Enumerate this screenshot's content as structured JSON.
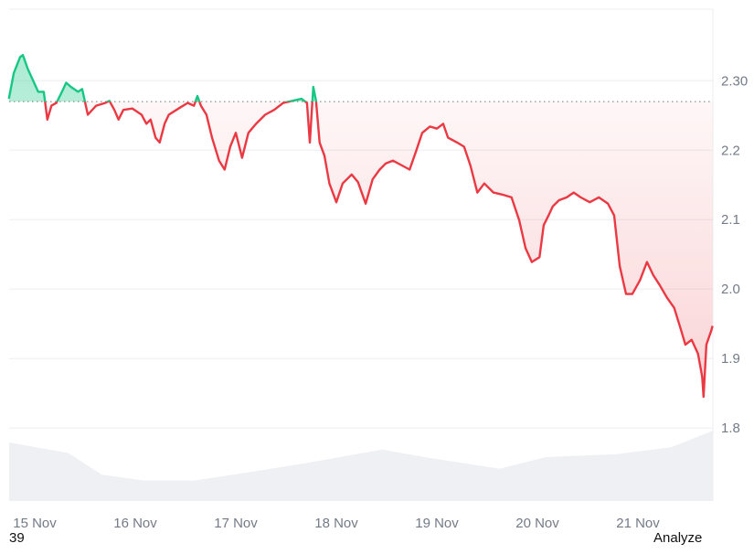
{
  "chart_data": {
    "type": "area",
    "title": "",
    "xlabel": "",
    "ylabel": "",
    "ylim": [
      1.695,
      2.403
    ],
    "y_ticks": [
      "2.30",
      "2.2",
      "2.1",
      "2.0",
      "1.9",
      "1.8"
    ],
    "x_ticks": [
      "15 Nov",
      "16 Nov",
      "17 Nov",
      "18 Nov",
      "19 Nov",
      "20 Nov",
      "21 Nov"
    ],
    "baseline": 2.27,
    "grid": true,
    "colors": {
      "up": "#16c784",
      "down": "#ea3943",
      "volume": "#eef0f3",
      "grid": "#eceef1"
    },
    "series": [
      {
        "x": [
          "11-14 17:50",
          "11-14 19:00",
          "11-14 20:30",
          "11-14 21:10",
          "11-14 22:20",
          "11-14 23:20",
          "11-15 00:50",
          "11-15 02:10",
          "11-15 03:00",
          "11-15 04:00",
          "11-15 05:10",
          "11-15 06:30",
          "11-15 07:30",
          "11-15 08:40",
          "11-15 10:20",
          "11-15 11:20",
          "11-15 12:40",
          "11-15 14:40",
          "11-15 16:50",
          "11-15 17:50",
          "11-15 19:00",
          "11-15 20:00",
          "11-15 21:10",
          "11-15 23:20",
          "11-16 01:30",
          "11-16 02:40",
          "11-16 03:40",
          "11-16 04:50",
          "11-16 05:50",
          "11-16 07:00",
          "11-16 08:00",
          "11-16 10:20",
          "11-16 12:30",
          "11-16 14:00",
          "11-16 14:50",
          "11-16 15:40",
          "11-16 17:00",
          "11-16 18:20",
          "11-16 20:00",
          "11-16 21:20",
          "11-16 22:40",
          "11-17 00:00",
          "11-17 01:30",
          "11-17 03:00",
          "11-17 04:50",
          "11-17 07:00",
          "11-17 09:10",
          "11-17 11:20",
          "11-17 13:30",
          "11-17 15:40",
          "11-17 17:00",
          "11-17 17:40",
          "11-17 18:30",
          "11-17 19:10",
          "11-17 20:00",
          "11-17 21:10",
          "11-17 22:20",
          "11-18 00:00",
          "11-18 01:30",
          "11-18 03:40",
          "11-18 05:10",
          "11-18 07:00",
          "11-18 08:40",
          "11-18 10:20",
          "11-18 11:50",
          "11-18 13:30",
          "11-18 15:40",
          "11-18 17:30",
          "11-18 19:00",
          "11-18 20:30",
          "11-18 22:20",
          "11-19 00:00",
          "11-19 01:30",
          "11-19 02:40",
          "11-19 04:50",
          "11-19 06:30",
          "11-19 08:00",
          "11-19 09:40",
          "11-19 11:20",
          "11-19 13:30",
          "11-19 15:40",
          "11-19 17:50",
          "11-19 19:40",
          "11-19 21:10",
          "11-19 22:40",
          "11-20 00:30",
          "11-20 01:30",
          "11-20 02:40",
          "11-20 03:40",
          "11-20 05:10",
          "11-20 07:00",
          "11-20 08:40",
          "11-20 10:20",
          "11-20 12:30",
          "11-20 14:40",
          "11-20 16:50",
          "11-20 18:20",
          "11-20 19:40",
          "11-20 21:10",
          "11-20 22:40",
          "11-21 00:30",
          "11-21 02:10",
          "11-21 03:40",
          "11-21 05:10",
          "11-21 07:00",
          "11-21 08:40",
          "11-21 10:20",
          "11-21 11:20",
          "11-21 12:50",
          "11-21 14:20",
          "11-21 15:20",
          "11-21 15:40",
          "11-21 16:20",
          "11-21 17:30",
          "11-21 17:50"
        ],
        "values": [
          2.274,
          2.311,
          2.334,
          2.337,
          2.317,
          2.304,
          2.284,
          2.284,
          2.244,
          2.264,
          2.268,
          2.284,
          2.297,
          2.291,
          2.284,
          2.288,
          2.251,
          2.264,
          2.268,
          2.271,
          2.258,
          2.244,
          2.258,
          2.26,
          2.251,
          2.238,
          2.244,
          2.218,
          2.211,
          2.238,
          2.251,
          2.26,
          2.268,
          2.264,
          2.278,
          2.264,
          2.251,
          2.218,
          2.185,
          2.172,
          2.205,
          2.225,
          2.189,
          2.225,
          2.238,
          2.251,
          2.258,
          2.268,
          2.271,
          2.274,
          2.268,
          2.211,
          2.291,
          2.271,
          2.211,
          2.192,
          2.152,
          2.125,
          2.152,
          2.165,
          2.154,
          2.123,
          2.158,
          2.172,
          2.181,
          2.185,
          2.178,
          2.172,
          2.198,
          2.225,
          2.234,
          2.231,
          2.238,
          2.218,
          2.211,
          2.205,
          2.178,
          2.139,
          2.152,
          2.139,
          2.136,
          2.132,
          2.099,
          2.059,
          2.039,
          2.046,
          2.092,
          2.106,
          2.119,
          2.128,
          2.132,
          2.139,
          2.132,
          2.125,
          2.132,
          2.123,
          2.106,
          2.033,
          1.993,
          1.993,
          2.013,
          2.039,
          2.02,
          2.006,
          1.987,
          1.973,
          1.94,
          1.92,
          1.927,
          1.907,
          1.874,
          1.845,
          1.92,
          1.94,
          1.947
        ]
      }
    ],
    "volume": {
      "x": [
        "11-14 17:50",
        "11-15 08:00",
        "11-15 16:00",
        "11-16 02:00",
        "11-16 14:00",
        "11-17 04:00",
        "11-17 17:00",
        "11-18 11:00",
        "11-18 21:00",
        "11-19 15:00",
        "11-20 02:00",
        "11-20 19:00",
        "11-21 08:00",
        "11-21 17:50"
      ],
      "relative": [
        1.0,
        0.82,
        0.45,
        0.35,
        0.35,
        0.5,
        0.65,
        0.88,
        0.75,
        0.55,
        0.75,
        0.8,
        0.92,
        1.2
      ]
    }
  },
  "footer": {
    "left_text": "39",
    "right_text": "Analyze"
  }
}
